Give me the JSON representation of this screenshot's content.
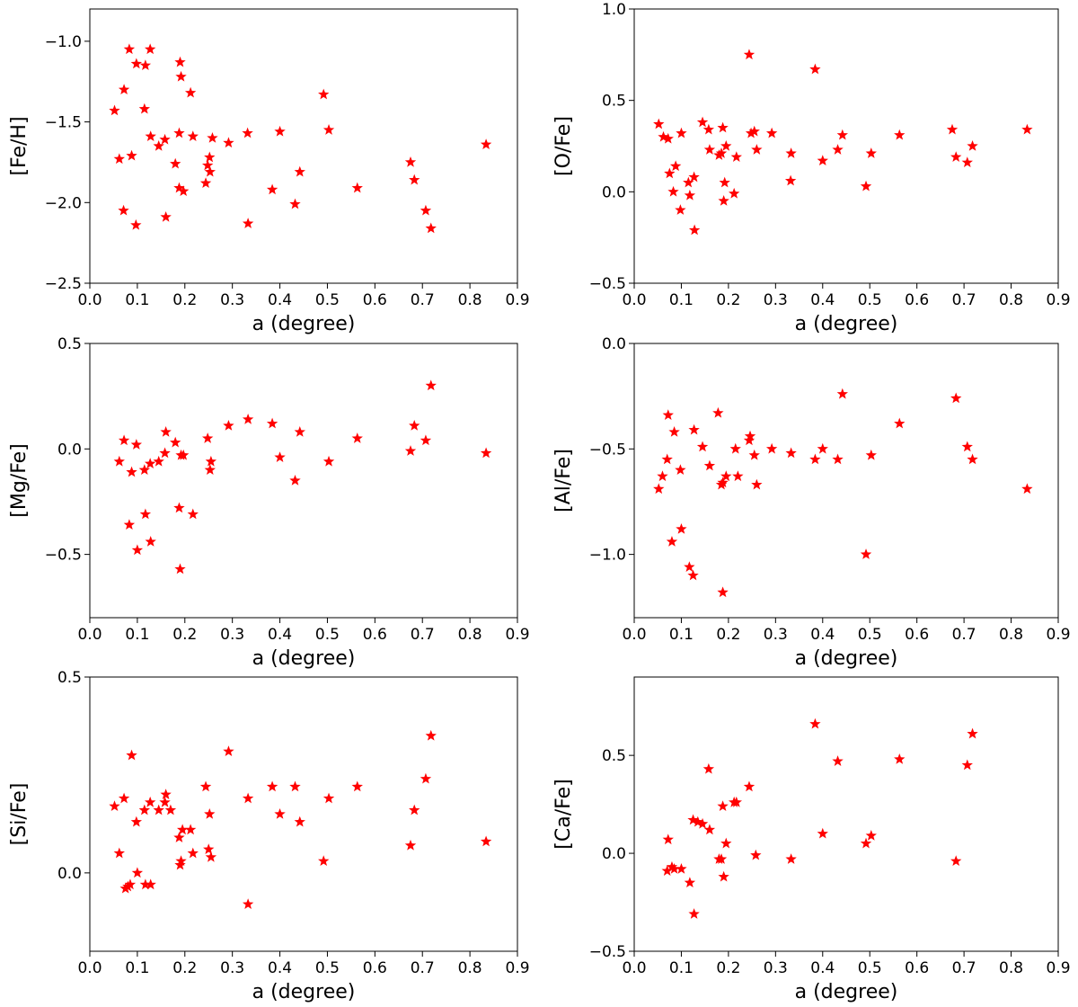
{
  "colors": {
    "marker": "#ff0000",
    "axis": "#000000",
    "background": "#ffffff"
  },
  "chart_data": [
    {
      "type": "scatter",
      "marker": "star",
      "xlabel": "a (degree)",
      "ylabel": "[Fe/H]",
      "xlim": [
        0.0,
        0.9
      ],
      "ylim": [
        -2.5,
        -0.8
      ],
      "xticks": [
        "0.0",
        "0.1",
        "0.2",
        "0.3",
        "0.4",
        "0.5",
        "0.6",
        "0.7",
        "0.8",
        "0.9"
      ],
      "yticks": [
        "−2.5",
        "−2.0",
        "−1.5",
        "−1.0"
      ],
      "ytick_values": [
        -2.5,
        -2.0,
        -1.5,
        -1.0
      ],
      "points": [
        [
          0.052,
          -1.43
        ],
        [
          0.062,
          -1.73
        ],
        [
          0.071,
          -2.05
        ],
        [
          0.072,
          -1.3
        ],
        [
          0.083,
          -1.05
        ],
        [
          0.088,
          -1.71
        ],
        [
          0.097,
          -2.14
        ],
        [
          0.098,
          -1.14
        ],
        [
          0.115,
          -1.42
        ],
        [
          0.117,
          -1.15
        ],
        [
          0.127,
          -1.05
        ],
        [
          0.128,
          -1.59
        ],
        [
          0.145,
          -1.65
        ],
        [
          0.158,
          -1.61
        ],
        [
          0.16,
          -2.09
        ],
        [
          0.18,
          -1.76
        ],
        [
          0.188,
          -1.91
        ],
        [
          0.188,
          -1.57
        ],
        [
          0.19,
          -1.13
        ],
        [
          0.192,
          -1.22
        ],
        [
          0.197,
          -1.93
        ],
        [
          0.212,
          -1.32
        ],
        [
          0.217,
          -1.59
        ],
        [
          0.244,
          -1.88
        ],
        [
          0.248,
          -1.77
        ],
        [
          0.252,
          -1.72
        ],
        [
          0.253,
          -1.81
        ],
        [
          0.258,
          -1.6
        ],
        [
          0.292,
          -1.63
        ],
        [
          0.332,
          -1.57
        ],
        [
          0.333,
          -2.13
        ],
        [
          0.384,
          -1.92
        ],
        [
          0.4,
          -1.56
        ],
        [
          0.432,
          -2.01
        ],
        [
          0.442,
          -1.81
        ],
        [
          0.492,
          -1.33
        ],
        [
          0.503,
          -1.55
        ],
        [
          0.563,
          -1.91
        ],
        [
          0.675,
          -1.75
        ],
        [
          0.683,
          -1.86
        ],
        [
          0.707,
          -2.05
        ],
        [
          0.718,
          -2.16
        ],
        [
          0.834,
          -1.64
        ]
      ]
    },
    {
      "type": "scatter",
      "marker": "star",
      "xlabel": "a (degree)",
      "ylabel": "[O/Fe]",
      "xlim": [
        0.0,
        0.9
      ],
      "ylim": [
        -0.5,
        1.0
      ],
      "xticks": [
        "0.0",
        "0.1",
        "0.2",
        "0.3",
        "0.4",
        "0.5",
        "0.6",
        "0.7",
        "0.8",
        "0.9"
      ],
      "yticks": [
        "−0.5",
        "0.0",
        "0.5",
        "1.0"
      ],
      "ytick_values": [
        -0.5,
        0.0,
        0.5,
        1.0
      ],
      "points": [
        [
          0.052,
          0.37
        ],
        [
          0.062,
          0.3
        ],
        [
          0.072,
          0.29
        ],
        [
          0.075,
          0.1
        ],
        [
          0.083,
          0.0
        ],
        [
          0.088,
          0.14
        ],
        [
          0.098,
          -0.1
        ],
        [
          0.1,
          0.32
        ],
        [
          0.115,
          0.05
        ],
        [
          0.118,
          -0.02
        ],
        [
          0.127,
          0.08
        ],
        [
          0.128,
          -0.21
        ],
        [
          0.145,
          0.38
        ],
        [
          0.158,
          0.34
        ],
        [
          0.16,
          0.23
        ],
        [
          0.18,
          0.2
        ],
        [
          0.185,
          0.21
        ],
        [
          0.188,
          0.35
        ],
        [
          0.19,
          -0.05
        ],
        [
          0.192,
          0.05
        ],
        [
          0.195,
          0.25
        ],
        [
          0.212,
          -0.01
        ],
        [
          0.217,
          0.19
        ],
        [
          0.244,
          0.75
        ],
        [
          0.248,
          0.32
        ],
        [
          0.255,
          0.33
        ],
        [
          0.26,
          0.23
        ],
        [
          0.292,
          0.32
        ],
        [
          0.332,
          0.06
        ],
        [
          0.333,
          0.21
        ],
        [
          0.384,
          0.67
        ],
        [
          0.4,
          0.17
        ],
        [
          0.432,
          0.23
        ],
        [
          0.442,
          0.31
        ],
        [
          0.492,
          0.03
        ],
        [
          0.503,
          0.21
        ],
        [
          0.563,
          0.31
        ],
        [
          0.675,
          0.34
        ],
        [
          0.683,
          0.19
        ],
        [
          0.707,
          0.16
        ],
        [
          0.718,
          0.25
        ],
        [
          0.834,
          0.34
        ]
      ]
    },
    {
      "type": "scatter",
      "marker": "star",
      "xlabel": "a (degree)",
      "ylabel": "[Mg/Fe]",
      "xlim": [
        0.0,
        0.9
      ],
      "ylim": [
        -0.8,
        0.5
      ],
      "xticks": [
        "0.0",
        "0.1",
        "0.2",
        "0.3",
        "0.4",
        "0.5",
        "0.6",
        "0.7",
        "0.8",
        "0.9"
      ],
      "yticks": [
        "−0.5",
        "0.0",
        "0.5"
      ],
      "ytick_values": [
        -0.5,
        0.0,
        0.5
      ],
      "points": [
        [
          0.062,
          -0.06
        ],
        [
          0.072,
          0.04
        ],
        [
          0.083,
          -0.36
        ],
        [
          0.088,
          -0.11
        ],
        [
          0.098,
          0.02
        ],
        [
          0.1,
          -0.48
        ],
        [
          0.115,
          -0.1
        ],
        [
          0.117,
          -0.31
        ],
        [
          0.127,
          -0.07
        ],
        [
          0.128,
          -0.44
        ],
        [
          0.145,
          -0.06
        ],
        [
          0.158,
          -0.02
        ],
        [
          0.16,
          0.08
        ],
        [
          0.18,
          0.03
        ],
        [
          0.188,
          -0.28
        ],
        [
          0.19,
          -0.57
        ],
        [
          0.192,
          -0.03
        ],
        [
          0.197,
          -0.03
        ],
        [
          0.217,
          -0.31
        ],
        [
          0.248,
          0.05
        ],
        [
          0.253,
          -0.1
        ],
        [
          0.255,
          -0.06
        ],
        [
          0.292,
          0.11
        ],
        [
          0.333,
          0.14
        ],
        [
          0.384,
          0.12
        ],
        [
          0.4,
          -0.04
        ],
        [
          0.432,
          -0.15
        ],
        [
          0.442,
          0.08
        ],
        [
          0.503,
          -0.06
        ],
        [
          0.563,
          0.05
        ],
        [
          0.675,
          -0.01
        ],
        [
          0.683,
          0.11
        ],
        [
          0.707,
          0.04
        ],
        [
          0.718,
          0.3
        ],
        [
          0.834,
          -0.02
        ]
      ]
    },
    {
      "type": "scatter",
      "marker": "star",
      "xlabel": "a (degree)",
      "ylabel": "[Al/Fe]",
      "xlim": [
        0.0,
        0.9
      ],
      "ylim": [
        -1.3,
        0.0
      ],
      "xticks": [
        "0.0",
        "0.1",
        "0.2",
        "0.3",
        "0.4",
        "0.5",
        "0.6",
        "0.7",
        "0.8",
        "0.9"
      ],
      "yticks": [
        "−1.0",
        "−0.5",
        "0.0"
      ],
      "ytick_values": [
        -1.0,
        -0.5,
        0.0
      ],
      "points": [
        [
          0.052,
          -0.69
        ],
        [
          0.06,
          -0.63
        ],
        [
          0.07,
          -0.55
        ],
        [
          0.072,
          -0.34
        ],
        [
          0.08,
          -0.94
        ],
        [
          0.085,
          -0.42
        ],
        [
          0.098,
          -0.6
        ],
        [
          0.1,
          -0.88
        ],
        [
          0.117,
          -1.06
        ],
        [
          0.125,
          -1.1
        ],
        [
          0.127,
          -0.41
        ],
        [
          0.145,
          -0.49
        ],
        [
          0.16,
          -0.58
        ],
        [
          0.178,
          -0.33
        ],
        [
          0.185,
          -0.67
        ],
        [
          0.188,
          -0.66
        ],
        [
          0.188,
          -1.18
        ],
        [
          0.195,
          -0.63
        ],
        [
          0.215,
          -0.5
        ],
        [
          0.22,
          -0.63
        ],
        [
          0.244,
          -0.46
        ],
        [
          0.246,
          -0.44
        ],
        [
          0.255,
          -0.53
        ],
        [
          0.26,
          -0.67
        ],
        [
          0.292,
          -0.5
        ],
        [
          0.333,
          -0.52
        ],
        [
          0.384,
          -0.55
        ],
        [
          0.4,
          -0.5
        ],
        [
          0.432,
          -0.55
        ],
        [
          0.442,
          -0.24
        ],
        [
          0.492,
          -1.0
        ],
        [
          0.503,
          -0.53
        ],
        [
          0.563,
          -0.38
        ],
        [
          0.683,
          -0.26
        ],
        [
          0.707,
          -0.49
        ],
        [
          0.718,
          -0.55
        ],
        [
          0.834,
          -0.69
        ]
      ]
    },
    {
      "type": "scatter",
      "marker": "star",
      "xlabel": "a (degree)",
      "ylabel": "[Si/Fe]",
      "xlim": [
        0.0,
        0.9
      ],
      "ylim": [
        -0.2,
        0.5
      ],
      "xticks": [
        "0.0",
        "0.1",
        "0.2",
        "0.3",
        "0.4",
        "0.5",
        "0.6",
        "0.7",
        "0.8",
        "0.9"
      ],
      "yticks": [
        "0.0",
        "0.5"
      ],
      "ytick_values": [
        0.0,
        0.5
      ],
      "points": [
        [
          0.052,
          0.17
        ],
        [
          0.062,
          0.05
        ],
        [
          0.072,
          0.19
        ],
        [
          0.075,
          -0.04
        ],
        [
          0.08,
          -0.035
        ],
        [
          0.085,
          -0.03
        ],
        [
          0.088,
          0.3
        ],
        [
          0.098,
          0.13
        ],
        [
          0.1,
          0.0
        ],
        [
          0.115,
          0.16
        ],
        [
          0.117,
          -0.03
        ],
        [
          0.127,
          0.18
        ],
        [
          0.128,
          -0.03
        ],
        [
          0.145,
          0.16
        ],
        [
          0.158,
          0.18
        ],
        [
          0.16,
          0.2
        ],
        [
          0.17,
          0.16
        ],
        [
          0.188,
          0.09
        ],
        [
          0.19,
          0.02
        ],
        [
          0.192,
          0.03
        ],
        [
          0.195,
          0.11
        ],
        [
          0.212,
          0.11
        ],
        [
          0.217,
          0.05
        ],
        [
          0.244,
          0.22
        ],
        [
          0.25,
          0.06
        ],
        [
          0.252,
          0.15
        ],
        [
          0.255,
          0.04
        ],
        [
          0.292,
          0.31
        ],
        [
          0.333,
          -0.08
        ],
        [
          0.333,
          0.19
        ],
        [
          0.384,
          0.22
        ],
        [
          0.4,
          0.15
        ],
        [
          0.432,
          0.22
        ],
        [
          0.442,
          0.13
        ],
        [
          0.492,
          0.03
        ],
        [
          0.503,
          0.19
        ],
        [
          0.563,
          0.22
        ],
        [
          0.675,
          0.07
        ],
        [
          0.683,
          0.16
        ],
        [
          0.707,
          0.24
        ],
        [
          0.718,
          0.35
        ],
        [
          0.834,
          0.08
        ]
      ]
    },
    {
      "type": "scatter",
      "marker": "star",
      "xlabel": "a (degree)",
      "ylabel": "[Ca/Fe]",
      "xlim": [
        0.0,
        0.9
      ],
      "ylim": [
        -0.5,
        0.9
      ],
      "xticks": [
        "0.0",
        "0.1",
        "0.2",
        "0.3",
        "0.4",
        "0.5",
        "0.6",
        "0.7",
        "0.8",
        "0.9"
      ],
      "yticks": [
        "−0.5",
        "0.0",
        "0.5"
      ],
      "ytick_values": [
        -0.5,
        0.0,
        0.5
      ],
      "points": [
        [
          0.07,
          -0.09
        ],
        [
          0.072,
          0.07
        ],
        [
          0.08,
          -0.07
        ],
        [
          0.085,
          -0.08
        ],
        [
          0.1,
          -0.08
        ],
        [
          0.118,
          -0.15
        ],
        [
          0.125,
          0.17
        ],
        [
          0.127,
          -0.31
        ],
        [
          0.135,
          0.16
        ],
        [
          0.145,
          0.15
        ],
        [
          0.158,
          0.43
        ],
        [
          0.16,
          0.12
        ],
        [
          0.18,
          -0.03
        ],
        [
          0.185,
          -0.03
        ],
        [
          0.188,
          0.24
        ],
        [
          0.19,
          -0.12
        ],
        [
          0.195,
          0.05
        ],
        [
          0.212,
          0.26
        ],
        [
          0.217,
          0.26
        ],
        [
          0.244,
          0.34
        ],
        [
          0.258,
          -0.01
        ],
        [
          0.333,
          -0.03
        ],
        [
          0.384,
          0.66
        ],
        [
          0.4,
          0.1
        ],
        [
          0.432,
          0.47
        ],
        [
          0.492,
          0.05
        ],
        [
          0.503,
          0.09
        ],
        [
          0.563,
          0.48
        ],
        [
          0.683,
          -0.04
        ],
        [
          0.707,
          0.45
        ],
        [
          0.718,
          0.61
        ]
      ]
    }
  ]
}
